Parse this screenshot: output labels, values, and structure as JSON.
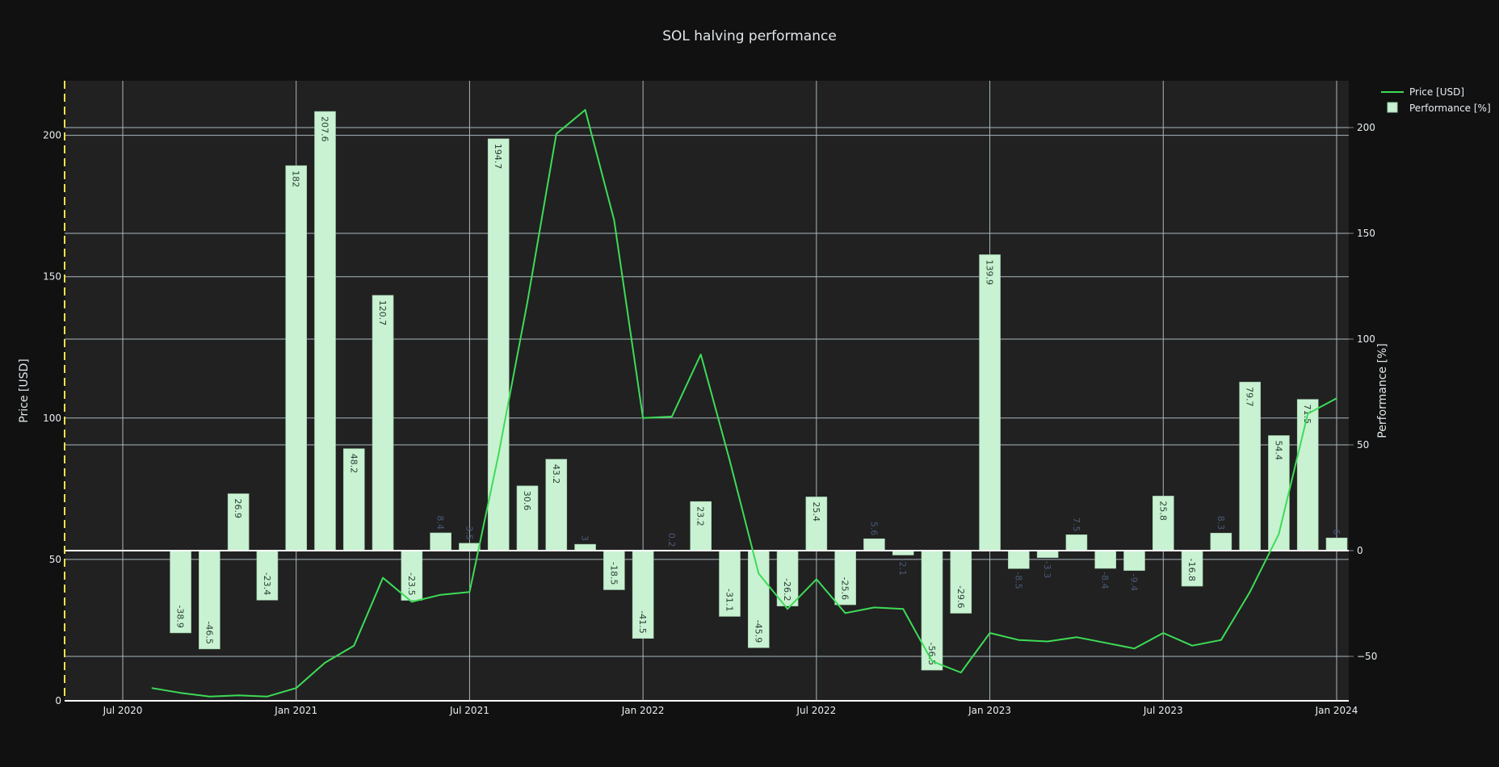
{
  "chart_data": {
    "type": "bar+line",
    "title": "SOL halving performance",
    "xlabel": "",
    "ylabel_left": "Price [USD]",
    "ylabel_right": "Performance [%]",
    "ylim_left": [
      0,
      220
    ],
    "ylim_right": [
      -68,
      210
    ],
    "x_ticks": [
      "Jul 2020",
      "Jan 2021",
      "Jul 2021",
      "Jan 2022",
      "Jul 2022",
      "Jan 2023",
      "Jul 2023",
      "Jan 2024"
    ],
    "y_ticks_left": [
      0,
      50,
      100,
      150,
      200
    ],
    "y_ticks_right": [
      -50,
      0,
      50,
      100,
      150,
      200
    ],
    "grid": true,
    "legend_position": "top-right",
    "colors": {
      "price_line": "#3ddc57",
      "bar_fill": "#c8f2d2",
      "bar_edge": "#9fc9a8",
      "background": "#111111",
      "plot_bg": "#212121",
      "grid": "#a9b7be",
      "marker_line": "#f4e14a"
    },
    "categories": [
      "Sep 2020",
      "Oct 2020",
      "Nov 2020",
      "Dec 2020",
      "Jan 2021",
      "Feb 2021",
      "Mar 2021",
      "Apr 2021",
      "May 2021",
      "Jun 2021",
      "Jul 2021",
      "Aug 2021",
      "Sep 2021",
      "Oct 2021",
      "Nov 2021",
      "Dec 2021",
      "Jan 2022",
      "Feb 2022",
      "Mar 2022",
      "Apr 2022",
      "May 2022",
      "Jun 2022",
      "Jul 2022",
      "Aug 2022",
      "Sep 2022",
      "Oct 2022",
      "Nov 2022",
      "Dec 2022",
      "Jan 2023",
      "Feb 2023",
      "Mar 2023",
      "Apr 2023",
      "May 2023",
      "Jun 2023",
      "Jul 2023",
      "Aug 2023",
      "Sep 2023",
      "Oct 2023",
      "Nov 2023",
      "Dec 2023",
      "Jan 2024"
    ],
    "series": [
      {
        "name": "Performance [%]",
        "type": "bar",
        "axis": "right",
        "values": [
          -38.9,
          -46.5,
          26.9,
          -23.4,
          182,
          207.6,
          48.2,
          120.7,
          -23.5,
          8.4,
          3.5,
          194.7,
          30.6,
          43.2,
          3,
          -18.5,
          -41.5,
          0.2,
          23.2,
          -31.1,
          -45.9,
          -26.2,
          25.4,
          -25.6,
          5.6,
          -2.1,
          -56.5,
          -29.6,
          139.9,
          -8.5,
          -3.3,
          7.5,
          -8.4,
          -9.4,
          25.8,
          -16.8,
          8.3,
          79.7,
          54.4,
          71.5,
          6
        ]
      },
      {
        "name": "Price [USD]",
        "type": "line",
        "axis": "left",
        "x": [
          "Aug 2020",
          "Sep 2020",
          "Oct 2020",
          "Nov 2020",
          "Dec 2020",
          "Jan 2021",
          "Feb 2021",
          "Mar 2021",
          "Apr 2021",
          "May 2021",
          "Jun 2021",
          "Jul 2021",
          "Aug 2021",
          "Sep 2021",
          "Oct 2021",
          "Nov 2021",
          "Dec 2021",
          "Jan 2022",
          "Feb 2022",
          "Mar 2022",
          "Apr 2022",
          "May 2022",
          "Jun 2022",
          "Jul 2022",
          "Aug 2022",
          "Sep 2022",
          "Oct 2022",
          "Nov 2022",
          "Dec 2022",
          "Jan 2023",
          "Feb 2023",
          "Mar 2023",
          "Apr 2023",
          "May 2023",
          "Jun 2023",
          "Jul 2023",
          "Aug 2023",
          "Sep 2023",
          "Oct 2023",
          "Nov 2023",
          "Dec 2023",
          "Jan 2024"
        ],
        "values": [
          4.5,
          2.8,
          1.5,
          1.9,
          1.5,
          4.5,
          13.5,
          19.5,
          43.5,
          35,
          37.5,
          38.5,
          87,
          141,
          200.5,
          209,
          170,
          100,
          100.5,
          122.5,
          85,
          45,
          32.5,
          43,
          31,
          33,
          32.5,
          14,
          10,
          24,
          21.5,
          21,
          22.5,
          20.5,
          18.5,
          24,
          19.5,
          21.5,
          38.5,
          59,
          101.5,
          107
        ]
      }
    ],
    "legend": [
      {
        "label": "Price [USD]",
        "symbol": "line"
      },
      {
        "label": "Performance [%]",
        "symbol": "square"
      }
    ]
  }
}
